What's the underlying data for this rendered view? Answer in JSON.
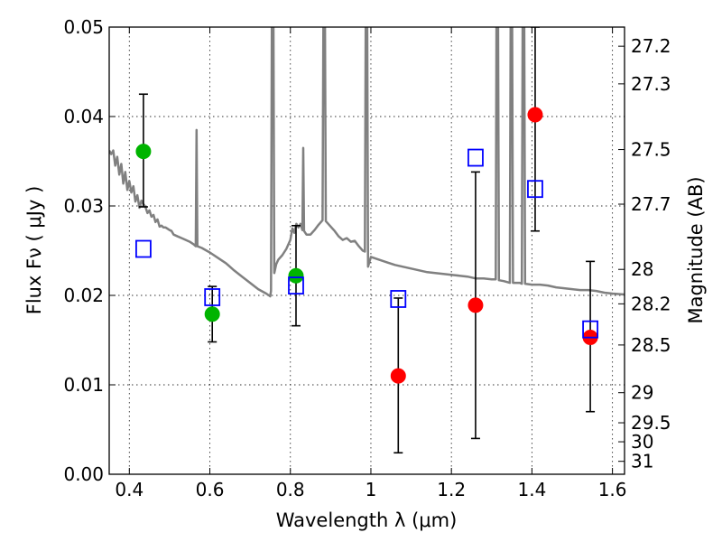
{
  "chart_data": {
    "type": "scatter",
    "xlabel": "Wavelength  λ (μm)",
    "ylabel": "Flux  Fν  ( μJy )",
    "ylabel_right": "Magnitude (AB)",
    "xlim": [
      0.35,
      1.63
    ],
    "ylim": [
      0.0,
      0.05
    ],
    "grid": true,
    "x_ticks": [
      {
        "value": 0.4,
        "label": "0.4"
      },
      {
        "value": 0.6,
        "label": "0.6"
      },
      {
        "value": 0.8,
        "label": "0.8"
      },
      {
        "value": 1.0,
        "label": "1"
      },
      {
        "value": 1.2,
        "label": "1.2"
      },
      {
        "value": 1.4,
        "label": "1.4"
      },
      {
        "value": 1.6,
        "label": "1.6"
      }
    ],
    "y_ticks": [
      {
        "value": 0.0,
        "label": "0.00"
      },
      {
        "value": 0.01,
        "label": "0.01"
      },
      {
        "value": 0.02,
        "label": "0.02"
      },
      {
        "value": 0.03,
        "label": "0.03"
      },
      {
        "value": 0.04,
        "label": "0.04"
      },
      {
        "value": 0.05,
        "label": "0.05"
      }
    ],
    "y_right_ticks": [
      {
        "value": 27.2,
        "label": "27.2"
      },
      {
        "value": 27.3,
        "label": "27.3"
      },
      {
        "value": 27.5,
        "label": "27.5"
      },
      {
        "value": 27.7,
        "label": "27.7"
      },
      {
        "value": 28,
        "label": "28"
      },
      {
        "value": 28.2,
        "label": "28.2"
      },
      {
        "value": 28.5,
        "label": "28.5"
      },
      {
        "value": 29,
        "label": "29"
      },
      {
        "value": 29.5,
        "label": "29.5"
      },
      {
        "value": 30,
        "label": "30"
      },
      {
        "value": 31,
        "label": "31"
      }
    ],
    "template_spectrum": {
      "color": "#808080",
      "points": [
        [
          0.35,
          0.0362
        ],
        [
          0.355,
          0.0358
        ],
        [
          0.36,
          0.0362
        ],
        [
          0.365,
          0.0345
        ],
        [
          0.37,
          0.0355
        ],
        [
          0.375,
          0.0335
        ],
        [
          0.38,
          0.0347
        ],
        [
          0.385,
          0.0325
        ],
        [
          0.39,
          0.0338
        ],
        [
          0.395,
          0.0318
        ],
        [
          0.4,
          0.0328
        ],
        [
          0.405,
          0.0315
        ],
        [
          0.41,
          0.0322
        ],
        [
          0.415,
          0.0305
        ],
        [
          0.42,
          0.0312
        ],
        [
          0.425,
          0.0298
        ],
        [
          0.43,
          0.0306
        ],
        [
          0.435,
          0.0302
        ],
        [
          0.44,
          0.0299
        ],
        [
          0.445,
          0.0292
        ],
        [
          0.45,
          0.0295
        ],
        [
          0.455,
          0.0288
        ],
        [
          0.46,
          0.029
        ],
        [
          0.465,
          0.0282
        ],
        [
          0.47,
          0.0285
        ],
        [
          0.475,
          0.0277
        ],
        [
          0.48,
          0.0278
        ],
        [
          0.485,
          0.0276
        ],
        [
          0.49,
          0.0276
        ],
        [
          0.5,
          0.0273
        ],
        [
          0.505,
          0.0272
        ],
        [
          0.51,
          0.0268
        ],
        [
          0.52,
          0.0266
        ],
        [
          0.53,
          0.0264
        ],
        [
          0.54,
          0.0262
        ],
        [
          0.55,
          0.026
        ],
        [
          0.56,
          0.0257
        ],
        [
          0.565,
          0.0255
        ],
        [
          0.567,
          0.0385
        ],
        [
          0.569,
          0.0255
        ],
        [
          0.58,
          0.0253
        ],
        [
          0.6,
          0.0248
        ],
        [
          0.62,
          0.0242
        ],
        [
          0.64,
          0.0236
        ],
        [
          0.66,
          0.0228
        ],
        [
          0.68,
          0.0221
        ],
        [
          0.7,
          0.0214
        ],
        [
          0.72,
          0.0207
        ],
        [
          0.74,
          0.0202
        ],
        [
          0.75,
          0.0199
        ],
        [
          0.752,
          0.0205
        ],
        [
          0.754,
          0.05
        ],
        [
          0.758,
          0.05
        ],
        [
          0.76,
          0.0225
        ],
        [
          0.765,
          0.0235
        ],
        [
          0.77,
          0.024
        ],
        [
          0.78,
          0.0245
        ],
        [
          0.79,
          0.0252
        ],
        [
          0.8,
          0.0262
        ],
        [
          0.805,
          0.0275
        ],
        [
          0.81,
          0.027
        ],
        [
          0.815,
          0.028
        ],
        [
          0.82,
          0.0276
        ],
        [
          0.825,
          0.028
        ],
        [
          0.83,
          0.0273
        ],
        [
          0.832,
          0.0365
        ],
        [
          0.834,
          0.0272
        ],
        [
          0.84,
          0.0268
        ],
        [
          0.85,
          0.0268
        ],
        [
          0.86,
          0.0273
        ],
        [
          0.87,
          0.0279
        ],
        [
          0.88,
          0.0284
        ],
        [
          0.882,
          0.05
        ],
        [
          0.886,
          0.05
        ],
        [
          0.888,
          0.0283
        ],
        [
          0.9,
          0.0277
        ],
        [
          0.91,
          0.0272
        ],
        [
          0.92,
          0.0266
        ],
        [
          0.93,
          0.0262
        ],
        [
          0.94,
          0.0264
        ],
        [
          0.95,
          0.026
        ],
        [
          0.96,
          0.0261
        ],
        [
          0.97,
          0.0255
        ],
        [
          0.98,
          0.025
        ],
        [
          0.985,
          0.0249
        ],
        [
          0.987,
          0.05
        ],
        [
          0.991,
          0.05
        ],
        [
          0.993,
          0.0232
        ],
        [
          1.0,
          0.0243
        ],
        [
          1.02,
          0.024
        ],
        [
          1.04,
          0.0237
        ],
        [
          1.06,
          0.0234
        ],
        [
          1.08,
          0.0232
        ],
        [
          1.1,
          0.023
        ],
        [
          1.12,
          0.0228
        ],
        [
          1.14,
          0.0226
        ],
        [
          1.16,
          0.0225
        ],
        [
          1.18,
          0.0224
        ],
        [
          1.2,
          0.0223
        ],
        [
          1.22,
          0.0222
        ],
        [
          1.24,
          0.0221
        ],
        [
          1.26,
          0.0219
        ],
        [
          1.28,
          0.0219
        ],
        [
          1.3,
          0.0218
        ],
        [
          1.31,
          0.0218
        ],
        [
          1.312,
          0.05
        ],
        [
          1.316,
          0.05
        ],
        [
          1.318,
          0.0217
        ],
        [
          1.33,
          0.0216
        ],
        [
          1.345,
          0.0214
        ],
        [
          1.347,
          0.05
        ],
        [
          1.351,
          0.05
        ],
        [
          1.353,
          0.0214
        ],
        [
          1.37,
          0.0214
        ],
        [
          1.375,
          0.0213
        ],
        [
          1.377,
          0.05
        ],
        [
          1.381,
          0.05
        ],
        [
          1.383,
          0.0213
        ],
        [
          1.4,
          0.0212
        ],
        [
          1.42,
          0.0212
        ],
        [
          1.44,
          0.0211
        ],
        [
          1.46,
          0.0209
        ],
        [
          1.48,
          0.0208
        ],
        [
          1.5,
          0.0207
        ],
        [
          1.52,
          0.0206
        ],
        [
          1.54,
          0.0206
        ],
        [
          1.56,
          0.0205
        ],
        [
          1.58,
          0.0203
        ],
        [
          1.6,
          0.0202
        ],
        [
          1.63,
          0.0201
        ]
      ]
    },
    "series": [
      {
        "marker": "circle",
        "color": "#00b400",
        "points": [
          {
            "x": 0.435,
            "y": 0.0361,
            "err_low": 0.0299,
            "err_high": 0.0425
          },
          {
            "x": 0.606,
            "y": 0.0179,
            "err_low": 0.0148,
            "err_high": 0.021
          },
          {
            "x": 0.814,
            "y": 0.0222,
            "err_low": 0.0166,
            "err_high": 0.0278
          }
        ]
      },
      {
        "marker": "circle",
        "color": "#ff0000",
        "points": [
          {
            "x": 1.068,
            "y": 0.011,
            "err_low": 0.0024,
            "err_high": 0.0197
          },
          {
            "x": 1.26,
            "y": 0.0189,
            "err_low": 0.004,
            "err_high": 0.0338
          },
          {
            "x": 1.408,
            "y": 0.0402,
            "err_low": 0.0272,
            "err_high": 0.05
          },
          {
            "x": 1.545,
            "y": 0.0153,
            "err_low": 0.007,
            "err_high": 0.0238
          }
        ]
      },
      {
        "marker": "open-square",
        "color": "#0000ff",
        "points": [
          {
            "x": 0.435,
            "y": 0.0252
          },
          {
            "x": 0.606,
            "y": 0.0198
          },
          {
            "x": 0.814,
            "y": 0.0211
          },
          {
            "x": 1.068,
            "y": 0.0196
          },
          {
            "x": 1.26,
            "y": 0.0354
          },
          {
            "x": 1.408,
            "y": 0.0319
          },
          {
            "x": 1.545,
            "y": 0.0162
          }
        ]
      }
    ]
  }
}
